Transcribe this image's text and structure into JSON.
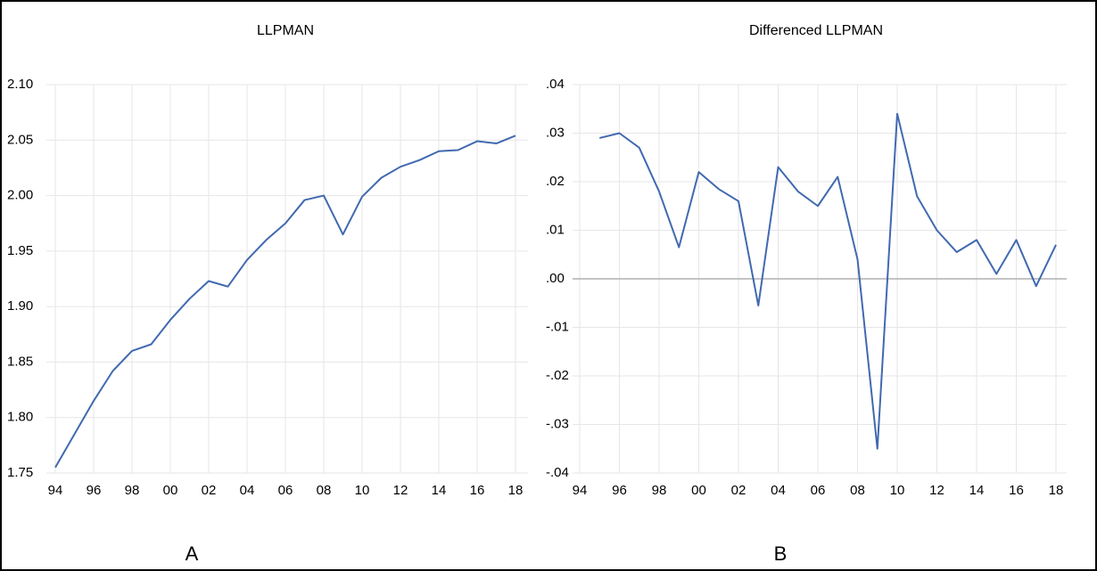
{
  "chart_data": [
    {
      "type": "line",
      "title": "LLPMAN",
      "panel_label": "A",
      "grid": true,
      "zero_line": false,
      "categories": [
        "94",
        null,
        "96",
        null,
        "98",
        null,
        "00",
        null,
        "02",
        null,
        "04",
        null,
        "06",
        null,
        "08",
        null,
        "10",
        null,
        "12",
        null,
        "14",
        null,
        "16",
        null,
        "18"
      ],
      "series": [
        {
          "name": "LLPMAN",
          "color": "#4169b0",
          "values": [
            1.755,
            1.785,
            1.815,
            1.842,
            1.86,
            1.866,
            1.888,
            1.907,
            1.923,
            1.918,
            1.942,
            1.96,
            1.975,
            1.996,
            2.0,
            1.965,
            1.999,
            2.016,
            2.026,
            2.032,
            2.04,
            2.041,
            2.049,
            2.047,
            2.054
          ]
        }
      ],
      "ylim": [
        1.75,
        2.1
      ],
      "yticks": [
        {
          "value": 1.75,
          "label": "1.75"
        },
        {
          "value": 1.8,
          "label": "1.80"
        },
        {
          "value": 1.85,
          "label": "1.85"
        },
        {
          "value": 1.9,
          "label": "1.90"
        },
        {
          "value": 1.95,
          "label": "1.95"
        },
        {
          "value": 2.0,
          "label": "2.00"
        },
        {
          "value": 2.05,
          "label": "2.05"
        },
        {
          "value": 2.1,
          "label": "2.10"
        }
      ]
    },
    {
      "type": "line",
      "title": "Differenced LLPMAN",
      "panel_label": "B",
      "grid": true,
      "zero_line": true,
      "categories": [
        "94",
        null,
        "96",
        null,
        "98",
        null,
        "00",
        null,
        "02",
        null,
        "04",
        null,
        "06",
        null,
        "08",
        null,
        "10",
        null,
        "12",
        null,
        "14",
        null,
        "16",
        null,
        "18"
      ],
      "series": [
        {
          "name": "Differenced LLPMAN",
          "color": "#4169b0",
          "values": [
            null,
            0.029,
            0.03,
            0.027,
            0.018,
            0.0065,
            0.022,
            0.0185,
            0.016,
            -0.0055,
            0.023,
            0.018,
            0.015,
            0.021,
            0.004,
            -0.035,
            0.034,
            0.017,
            0.01,
            0.0055,
            0.008,
            0.001,
            0.008,
            -0.0015,
            0.007
          ]
        }
      ],
      "ylim": [
        -0.04,
        0.04
      ],
      "yticks": [
        {
          "value": -0.04,
          "label": "-.04"
        },
        {
          "value": -0.03,
          "label": "-.03"
        },
        {
          "value": -0.02,
          "label": "-.02"
        },
        {
          "value": -0.01,
          "label": "-.01"
        },
        {
          "value": 0,
          "label": ".00"
        },
        {
          "value": 0.01,
          "label": ".01"
        },
        {
          "value": 0.02,
          "label": ".02"
        },
        {
          "value": 0.03,
          "label": ".03"
        },
        {
          "value": 0.04,
          "label": ".04"
        }
      ]
    }
  ]
}
